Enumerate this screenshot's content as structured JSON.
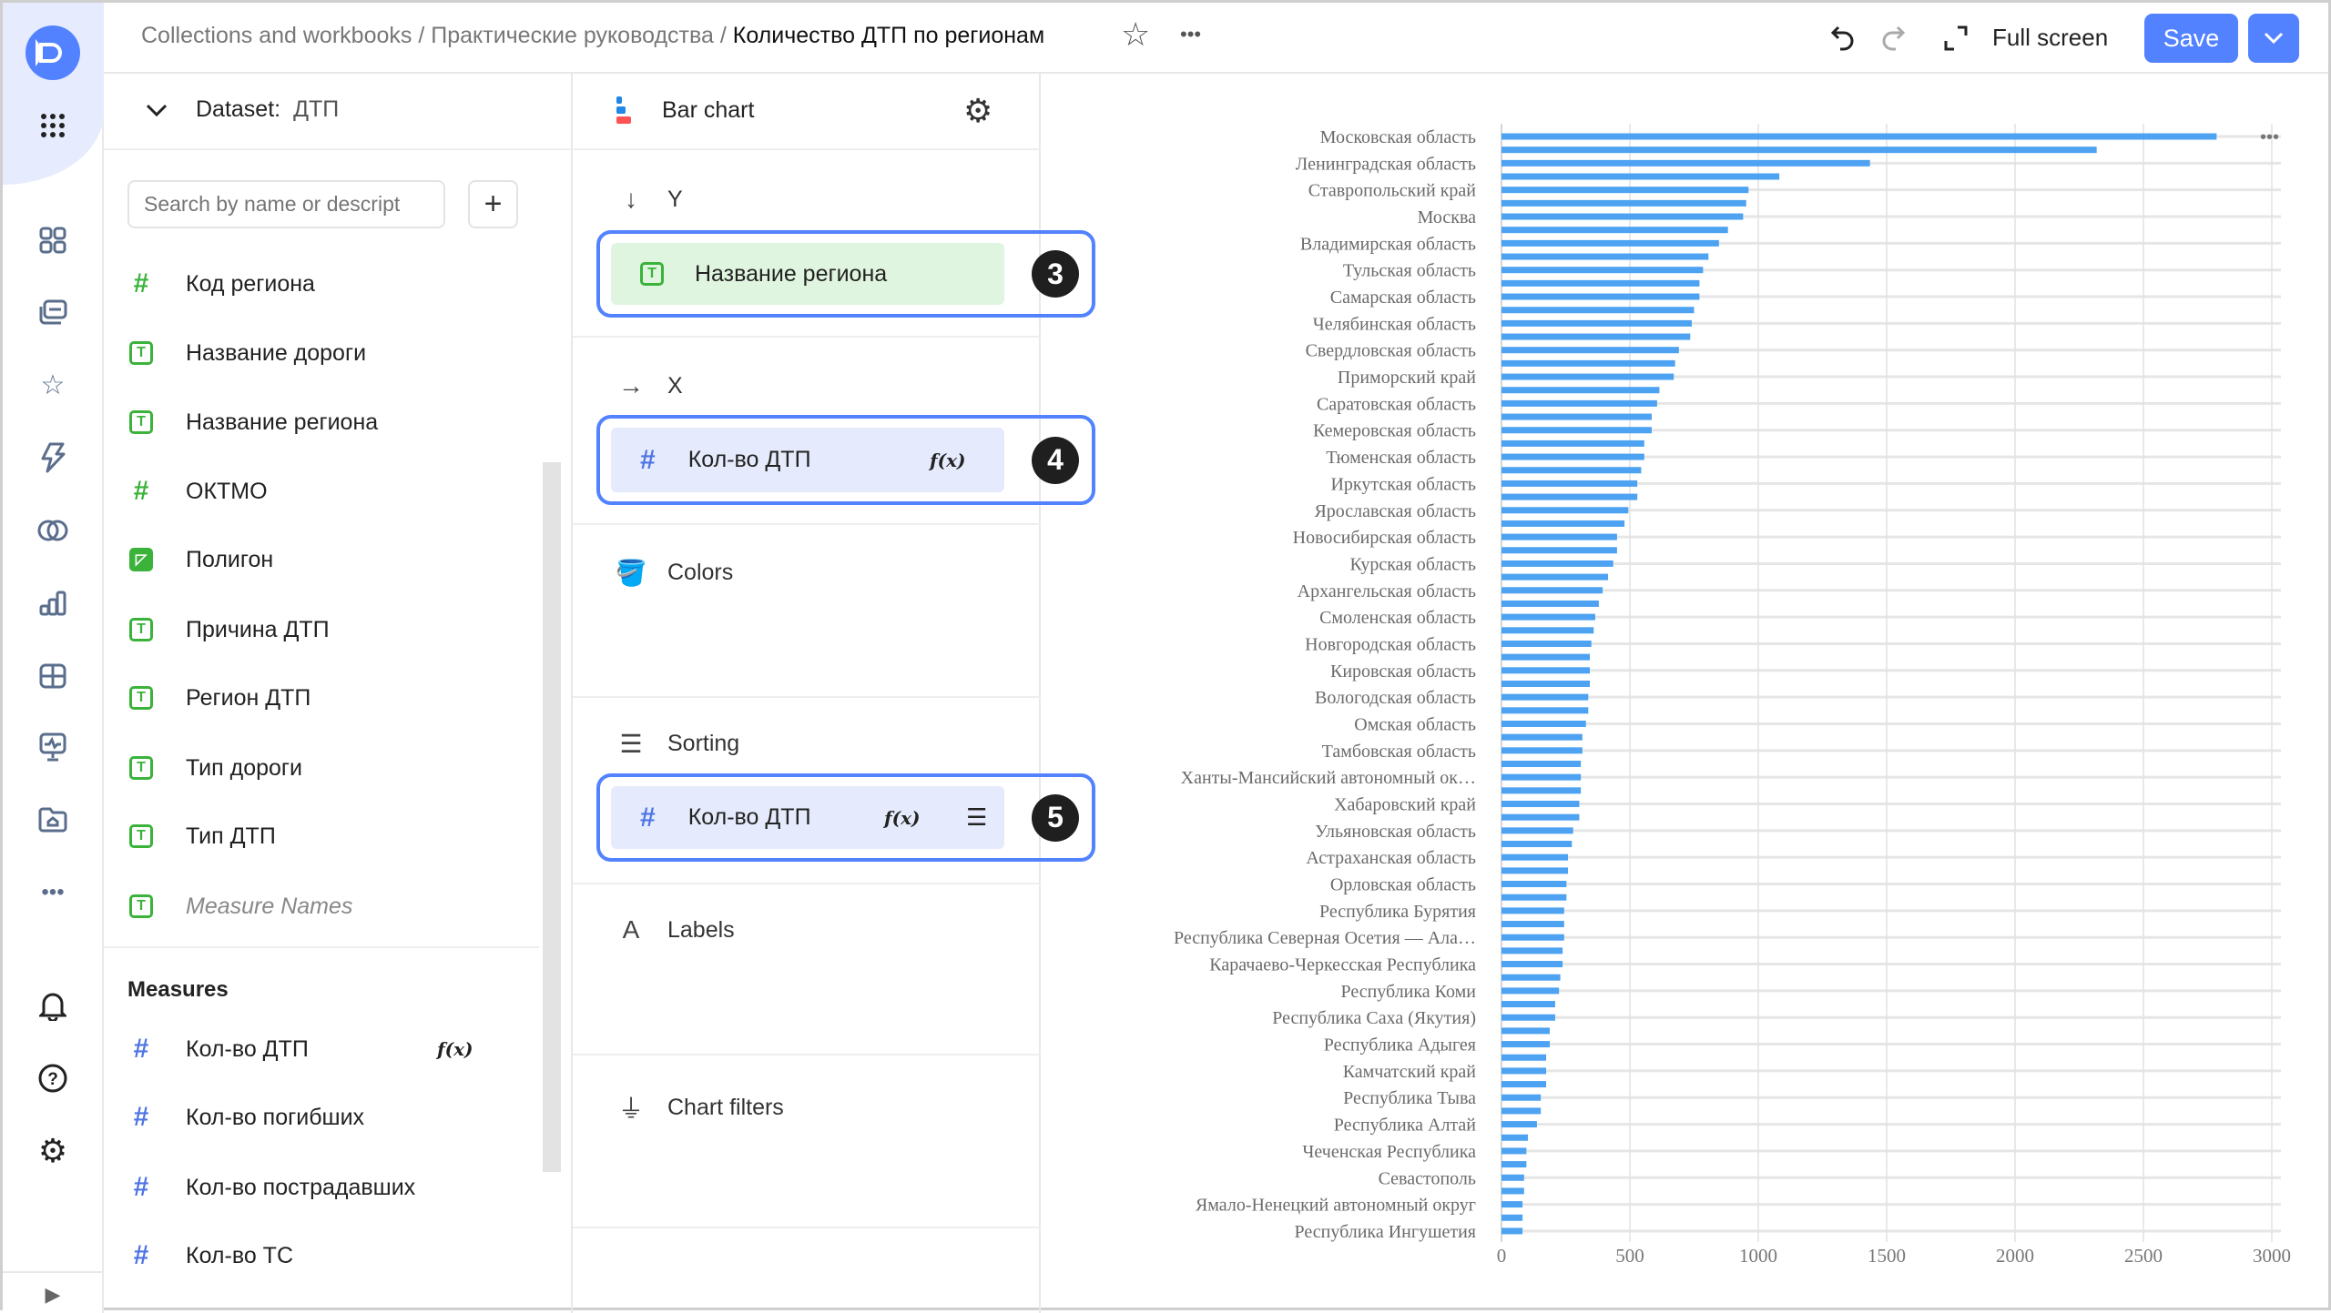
{
  "header": {
    "breadcrumb": [
      "Collections and workbooks",
      "Практические руководства",
      "Количество ДТП по регионам"
    ],
    "separator": "/",
    "fullscreen_label": "Full screen",
    "save_label": "Save"
  },
  "dataset": {
    "label": "Dataset:",
    "name": "ДТП",
    "search_placeholder": "Search by name or descript",
    "add_icon": "+",
    "dimensions": [
      {
        "type": "number",
        "label": "Код региона"
      },
      {
        "type": "text",
        "label": "Название дороги"
      },
      {
        "type": "text",
        "label": "Название региона"
      },
      {
        "type": "number",
        "label": "ОКТМО"
      },
      {
        "type": "geo",
        "label": "Полигон"
      },
      {
        "type": "text",
        "label": "Причина ДТП"
      },
      {
        "type": "text",
        "label": "Регион ДТП"
      },
      {
        "type": "text",
        "label": "Тип дороги"
      },
      {
        "type": "text",
        "label": "Тип ДТП"
      },
      {
        "type": "text",
        "label": "Measure Names"
      }
    ],
    "measures_title": "Measures",
    "measures": [
      {
        "label": "Кол-во ДТП",
        "formula": "f(x)"
      },
      {
        "label": "Кол-во погибших"
      },
      {
        "label": "Кол-во пострадавших"
      },
      {
        "label": "Кол-во ТС"
      }
    ]
  },
  "wizard": {
    "chart_type": "Bar chart",
    "sections": {
      "y": {
        "label": "Y",
        "field": "Название региона",
        "badge": "3"
      },
      "x": {
        "label": "X",
        "field": "Кол-во ДТП",
        "formula": "f(x)",
        "badge": "4"
      },
      "colors": {
        "label": "Colors"
      },
      "sorting": {
        "label": "Sorting",
        "field": "Кол-во ДТП",
        "formula": "f(x)",
        "badge": "5"
      },
      "labels": {
        "label": "Labels"
      },
      "filters": {
        "label": "Chart filters"
      }
    }
  },
  "colors": {
    "accent": "#5282ff",
    "bar": "#4da2f1",
    "dimension": "#3bb33b",
    "measure": "#4f74e3"
  },
  "chart_data": {
    "type": "bar",
    "orientation": "horizontal",
    "categories": [
      "Московская область",
      "",
      "Ленинградская область",
      "",
      "Ставропольский край",
      "",
      "Москва",
      "",
      "Владимирская область",
      "",
      "Тульская область",
      "",
      "Самарская область",
      "",
      "Челябинская область",
      "",
      "Свердловская область",
      "",
      "Приморский край",
      "",
      "Саратовская область",
      "",
      "Кемеровская область",
      "",
      "Тюменская область",
      "",
      "Иркутская область",
      "",
      "Ярославская область",
      "",
      "Новосибирская область",
      "",
      "Курская область",
      "",
      "Архангельская область",
      "",
      "Смоленская область",
      "",
      "Новгородская область",
      "",
      "Кировская область",
      "",
      "Вологодская область",
      "",
      "Омская область",
      "",
      "Тамбовская область",
      "",
      "Ханты-Мансийский автономный ок…",
      "",
      "Хабаровский край",
      "",
      "Ульяновская область",
      "",
      "Астраханская область",
      "",
      "Орловская область",
      "",
      "Республика Бурятия",
      "",
      "Республика Северная Осетия — Ала…",
      "",
      "Карачаево-Черкесская Республика",
      "",
      "Республика Коми",
      "",
      "Республика Саха (Якутия)",
      "",
      "Республика Адыгея",
      "",
      "Камчатский край",
      "",
      "Республика Тыва",
      "",
      "Республика Алтай",
      "",
      "Чеченская Республика",
      "",
      "Севастополь",
      "",
      "Ямало-Ненецкий автономный округ",
      "",
      "Республика Ингушетия"
    ],
    "values": [
      2785,
      2318,
      1435,
      1082,
      962,
      953,
      941,
      882,
      847,
      806,
      785,
      771,
      771,
      750,
      741,
      735,
      691,
      676,
      671,
      615,
      606,
      585,
      585,
      556,
      556,
      544,
      529,
      529,
      494,
      479,
      450,
      450,
      435,
      415,
      394,
      379,
      365,
      359,
      350,
      344,
      344,
      344,
      338,
      338,
      329,
      315,
      315,
      309,
      309,
      309,
      303,
      303,
      279,
      274,
      259,
      259,
      253,
      253,
      244,
      244,
      244,
      238,
      238,
      229,
      224,
      209,
      209,
      188,
      188,
      174,
      174,
      174,
      153,
      153,
      138,
      103,
      97,
      97,
      88,
      88,
      82,
      82,
      82
    ],
    "xlim": [
      0,
      3000
    ],
    "xticks": [
      "0",
      "500",
      "1000",
      "1500",
      "2000",
      "2500",
      "3000"
    ],
    "grid": true
  }
}
